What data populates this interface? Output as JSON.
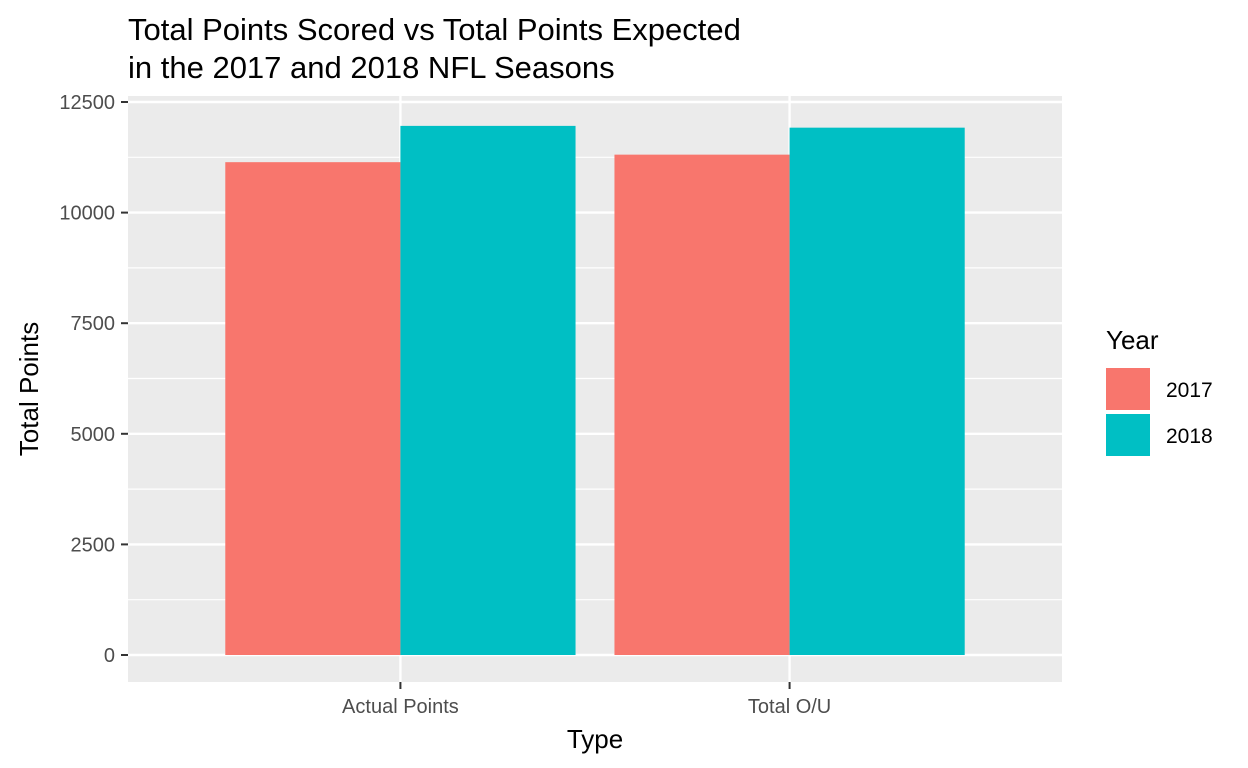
{
  "chart_data": {
    "type": "bar",
    "title": "Total Points Scored vs Total Points Expected in the 2017 and 2018 NFL Seasons",
    "title_lines": [
      "Total Points Scored vs Total Points Expected",
      "in the 2017 and 2018 NFL Seasons"
    ],
    "xlabel": "Type",
    "ylabel": "Total Points",
    "categories": [
      "Actual Points",
      "Total O/U"
    ],
    "series": [
      {
        "name": "2017",
        "color": "#F8766D",
        "values": [
          11140,
          11310
        ]
      },
      {
        "name": "2018",
        "color": "#00BFC4",
        "values": [
          11960,
          11920
        ]
      }
    ],
    "ylim": [
      0,
      12500
    ],
    "yticks": [
      0,
      2500,
      5000,
      7500,
      10000,
      12500
    ],
    "legend": {
      "title": "Year",
      "position": "right"
    },
    "grid": true,
    "panel_background": "#EBEBEB"
  }
}
